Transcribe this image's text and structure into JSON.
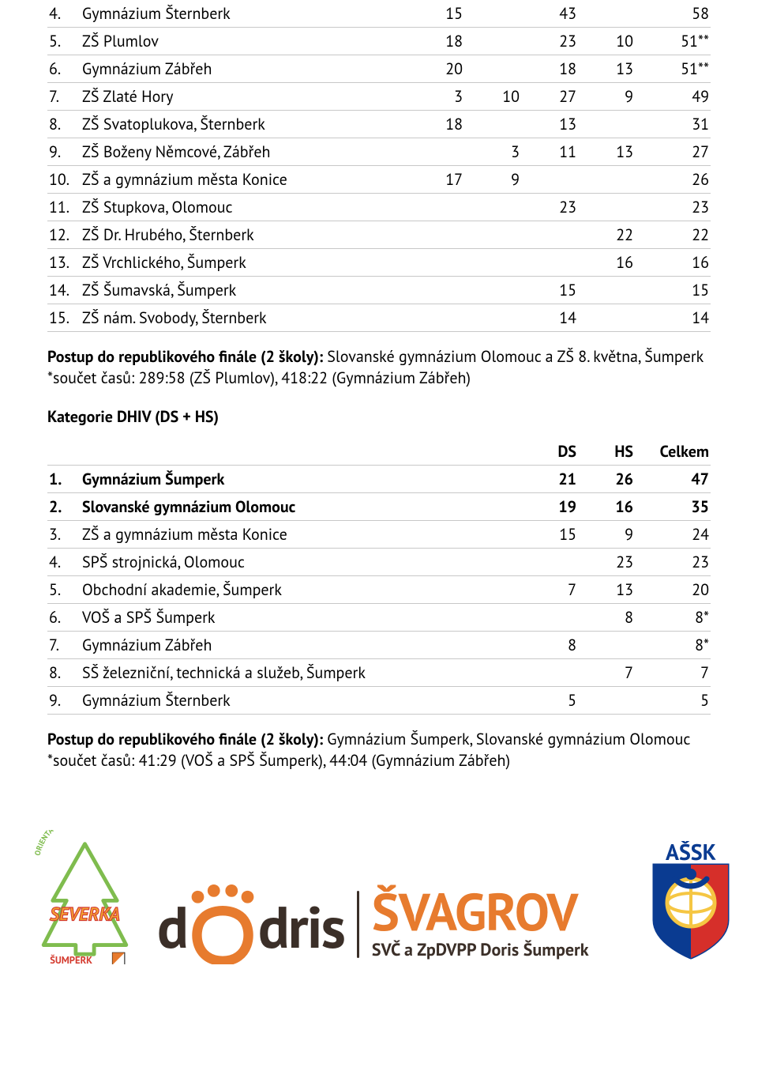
{
  "table1": {
    "cols": 5,
    "rows": [
      {
        "rank": "4.",
        "name": "Gymnázium Šternberk",
        "c": [
          "15",
          "",
          "43",
          "",
          "58"
        ],
        "bold": false
      },
      {
        "rank": "5.",
        "name": "ZŠ Plumlov",
        "c": [
          "18",
          "",
          "23",
          "10",
          "51**"
        ],
        "bold": false
      },
      {
        "rank": "6.",
        "name": "Gymnázium Zábřeh",
        "c": [
          "20",
          "",
          "18",
          "13",
          "51**"
        ],
        "bold": false
      },
      {
        "rank": "7.",
        "name": "ZŠ Zlaté Hory",
        "c": [
          "3",
          "10",
          "27",
          "9",
          "49"
        ],
        "bold": false
      },
      {
        "rank": "8.",
        "name": "ZŠ Svatoplukova, Šternberk",
        "c": [
          "18",
          "",
          "13",
          "",
          "31"
        ],
        "bold": false
      },
      {
        "rank": "9.",
        "name": "ZŠ Boženy Němcové, Zábřeh",
        "c": [
          "",
          "3",
          "11",
          "13",
          "27"
        ],
        "bold": false
      },
      {
        "rank": "10.",
        "name": "ZŠ a gymnázium města Konice",
        "c": [
          "17",
          "9",
          "",
          "",
          "26"
        ],
        "bold": false
      },
      {
        "rank": "11.",
        "name": "ZŠ Stupkova, Olomouc",
        "c": [
          "",
          "",
          "23",
          "",
          "23"
        ],
        "bold": false
      },
      {
        "rank": "12.",
        "name": "ZŠ Dr. Hrubého, Šternberk",
        "c": [
          "",
          "",
          "",
          "22",
          "22"
        ],
        "bold": false
      },
      {
        "rank": "13.",
        "name": "ZŠ Vrchlického, Šumperk",
        "c": [
          "",
          "",
          "",
          "16",
          "16"
        ],
        "bold": false
      },
      {
        "rank": "14.",
        "name": "ZŠ Šumavská, Šumperk",
        "c": [
          "",
          "",
          "15",
          "",
          "15"
        ],
        "bold": false
      },
      {
        "rank": "15.",
        "name": "ZŠ nám. Svobody, Šternberk",
        "c": [
          "",
          "",
          "14",
          "",
          "14"
        ],
        "bold": false
      }
    ]
  },
  "note1": {
    "lead": "Postup do republikového finále (2 školy): ",
    "rest": "Slovanské gymnázium Olomouc a ZŠ 8. května, Šumperk",
    "line2": "*součet časů: 289:58 (ZŠ Plumlov), 418:22 (Gymnázium Zábřeh)"
  },
  "kat": "Kategorie DHIV (DS + HS)",
  "table2": {
    "head": [
      "DS",
      "HS",
      "Celkem"
    ],
    "rows": [
      {
        "rank": "1.",
        "name": "Gymnázium Šumperk",
        "c": [
          "21",
          "26",
          "47"
        ],
        "bold": true
      },
      {
        "rank": "2.",
        "name": "Slovanské gymnázium Olomouc",
        "c": [
          "19",
          "16",
          "35"
        ],
        "bold": true
      },
      {
        "rank": "3.",
        "name": "ZŠ a gymnázium města Konice",
        "c": [
          "15",
          "9",
          "24"
        ],
        "bold": false
      },
      {
        "rank": "4.",
        "name": "SPŠ strojnická, Olomouc",
        "c": [
          "",
          "23",
          "23"
        ],
        "bold": false
      },
      {
        "rank": "5.",
        "name": "Obchodní akademie, Šumperk",
        "c": [
          "7",
          "13",
          "20"
        ],
        "bold": false
      },
      {
        "rank": "6.",
        "name": "VOŠ a SPŠ Šumperk",
        "c": [
          "",
          "8",
          "8*"
        ],
        "bold": false
      },
      {
        "rank": "7.",
        "name": "Gymnázium Zábřeh",
        "c": [
          "8",
          "",
          "8*"
        ],
        "bold": false
      },
      {
        "rank": "8.",
        "name": "SŠ železniční, technická a služeb, Šumperk",
        "c": [
          "",
          "7",
          "7"
        ],
        "bold": false
      },
      {
        "rank": "9.",
        "name": "Gymnázium Šternberk",
        "c": [
          "5",
          "",
          "5"
        ],
        "bold": false
      }
    ]
  },
  "note2": {
    "lead": "Postup do republikového finále (2 školy): ",
    "rest": "Gymnázium Šumperk, Slovanské gymnázium Olomouc",
    "line2": "*součet časů: 41:29 (VOŠ a SPŠ Šumperk), 44:04 (Gymnázium Zábřeh)"
  },
  "logos": {
    "severka_arc": "ORIENTAČNÍ BĚH",
    "severka": "SEVERKA",
    "severka_sub": "ŠUMPERK",
    "doris": "dris",
    "svagrov": "ŠVAGROV",
    "svagrov_sub": "SVČ a ZpDVPP Doris Šumperk",
    "assk": "AŠSK",
    "colors": {
      "severka_green": "#7fbc4e",
      "severka_orange": "#f4a731",
      "severka_red": "#d43b2f",
      "doris_brown": "#3b2f28",
      "doris_orange": "#e77b2e",
      "assk_blue": "#0a3b91",
      "assk_red": "#d62f2a",
      "assk_yellow": "#f5c643"
    }
  }
}
